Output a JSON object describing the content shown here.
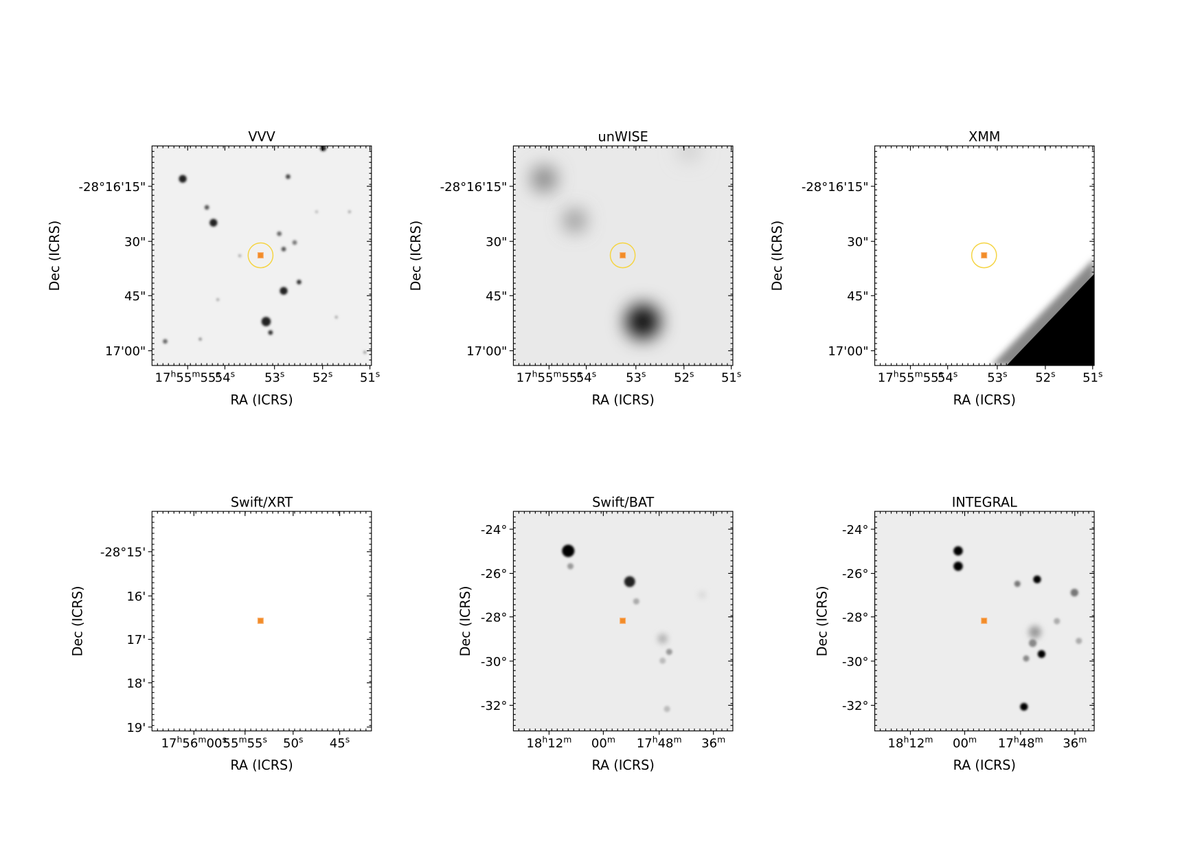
{
  "panels": [
    {
      "title": "VVV",
      "x_label": "RA (ICRS)",
      "y_label": "Dec (ICRS)",
      "x_ticks": [
        "17h55m55s",
        "54s",
        "53s",
        "52s",
        "51s"
      ],
      "y_ticks": [
        "-28°16'15\"",
        "30\"",
        "45\"",
        "17'00\""
      ]
    },
    {
      "title": "unWISE",
      "x_label": "RA (ICRS)",
      "y_label": "Dec (ICRS)",
      "x_ticks": [
        "17h55m55s",
        "54s",
        "53s",
        "52s",
        "51s"
      ],
      "y_ticks": [
        "-28°16'15\"",
        "30\"",
        "45\"",
        "17'00\""
      ]
    },
    {
      "title": "XMM",
      "x_label": "RA (ICRS)",
      "y_label": "Dec (ICRS)",
      "x_ticks": [
        "17h55m55s",
        "54s",
        "53s",
        "52s",
        "51s"
      ],
      "y_ticks": [
        "-28°16'15\"",
        "30\"",
        "45\"",
        "17'00\""
      ]
    },
    {
      "title": "Swift/XRT",
      "x_label": "RA (ICRS)",
      "y_label": "Dec (ICRS)",
      "x_ticks": [
        "17h56m00s",
        "55m55s",
        "50s",
        "45s"
      ],
      "y_ticks": [
        "-28°15'",
        "16'",
        "17'",
        "18'",
        "19'"
      ]
    },
    {
      "title": "Swift/BAT",
      "x_label": "RA (ICRS)",
      "y_label": "Dec (ICRS)",
      "x_ticks": [
        "18h12m",
        "00m",
        "17h48m",
        "36m"
      ],
      "y_ticks": [
        "-24°",
        "-26°",
        "-28°",
        "-30°",
        "-32°"
      ]
    },
    {
      "title": "INTEGRAL",
      "x_label": "RA (ICRS)",
      "y_label": "Dec (ICRS)",
      "x_ticks": [
        "18h12m",
        "00m",
        "17h48m",
        "36m"
      ],
      "y_ticks": [
        "-24°",
        "-26°",
        "-28°",
        "-30°",
        "-32°"
      ]
    }
  ]
}
